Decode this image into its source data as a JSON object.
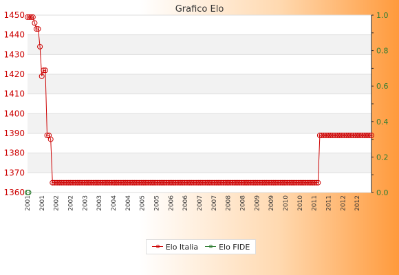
{
  "chart_data": {
    "type": "line",
    "title": "Grafico Elo",
    "y_left": {
      "min": 1360,
      "max": 1450,
      "step": 10,
      "color": "#cc0000"
    },
    "y_right": {
      "min": 0,
      "max": 1,
      "step": 0.2,
      "color": "#2e7d32"
    },
    "x_tick_labels": [
      "2001",
      "2001",
      "2002",
      "2002",
      "2003",
      "2003",
      "2004",
      "2004",
      "2005",
      "2005",
      "2006",
      "2006",
      "2007",
      "2007",
      "2008",
      "2008",
      "2009",
      "2009",
      "2010",
      "2010",
      "2011",
      "2011",
      "2012",
      "2012"
    ],
    "grid": true,
    "legend_position": "bottom",
    "series": [
      {
        "name": "Elo Italia",
        "color": "#cc0000",
        "axis": "left",
        "values": [
          1449,
          1449,
          1449,
          1449,
          1446,
          1443,
          1443,
          1434,
          1419,
          1422,
          1422,
          1389,
          1389,
          1387,
          1365,
          1365,
          1365,
          1365,
          1365,
          1365,
          1365,
          1365,
          1365,
          1365,
          1365,
          1365,
          1365,
          1365,
          1365,
          1365,
          1365,
          1365,
          1365,
          1365,
          1365,
          1365,
          1365,
          1365,
          1365,
          1365,
          1365,
          1365,
          1365,
          1365,
          1365,
          1365,
          1365,
          1365,
          1365,
          1365,
          1365,
          1365,
          1365,
          1365,
          1365,
          1365,
          1365,
          1365,
          1365,
          1365,
          1365,
          1365,
          1365,
          1365,
          1365,
          1365,
          1365,
          1365,
          1365,
          1365,
          1365,
          1365,
          1365,
          1365,
          1365,
          1365,
          1365,
          1365,
          1365,
          1365,
          1365,
          1365,
          1365,
          1365,
          1365,
          1365,
          1365,
          1365,
          1365,
          1365,
          1365,
          1365,
          1365,
          1365,
          1365,
          1365,
          1365,
          1365,
          1365,
          1365,
          1365,
          1365,
          1365,
          1365,
          1365,
          1365,
          1365,
          1365,
          1365,
          1365,
          1365,
          1365,
          1365,
          1365,
          1365,
          1365,
          1365,
          1365,
          1365,
          1365,
          1365,
          1365,
          1365,
          1365,
          1365,
          1365,
          1365,
          1365,
          1365,
          1365,
          1365,
          1365,
          1365,
          1365,
          1365,
          1365,
          1365,
          1365,
          1365,
          1365,
          1365,
          1365,
          1365,
          1365,
          1365,
          1365,
          1365,
          1365,
          1365,
          1365,
          1365,
          1365,
          1365,
          1365,
          1365,
          1365,
          1365,
          1365,
          1365,
          1365,
          1365,
          1365,
          1365,
          1365,
          1389,
          1389,
          1389,
          1389,
          1389,
          1389,
          1389,
          1389,
          1389,
          1389,
          1389,
          1389,
          1389,
          1389,
          1389,
          1389,
          1389,
          1389,
          1389,
          1389,
          1389,
          1389,
          1389,
          1389,
          1389,
          1389,
          1389,
          1389,
          1389,
          1389
        ]
      },
      {
        "name": "Elo FIDE",
        "color": "#2e7d32",
        "axis": "right",
        "values": [
          0,
          0
        ]
      }
    ]
  }
}
